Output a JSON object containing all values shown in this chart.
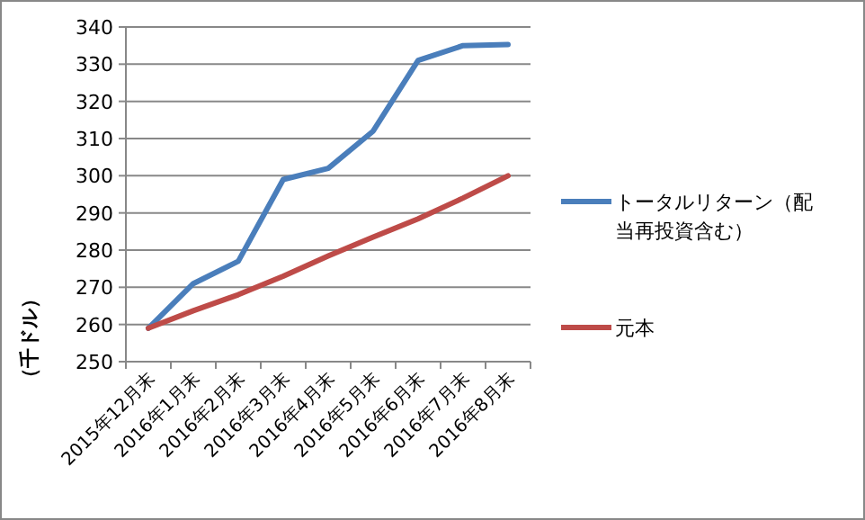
{
  "chart_data": {
    "type": "line",
    "ylabel": "（千ドル）",
    "categories": [
      "2015年12月末",
      "2016年1月末",
      "2016年2月末",
      "2016年3月末",
      "2016年4月末",
      "2016年5月末",
      "2016年6月末",
      "2016年7月末",
      "2016年8月末"
    ],
    "series": [
      {
        "name": "トータルリターン（配当再投資含む）",
        "color": "#4a7ebb",
        "values": [
          259,
          271,
          277,
          299,
          302,
          312,
          331,
          335,
          335.3
        ]
      },
      {
        "name": "元本",
        "color": "#be4b48",
        "values": [
          259,
          263.7,
          268,
          273,
          278.4,
          283.5,
          288.4,
          294,
          300
        ]
      }
    ],
    "ylim": [
      250,
      340
    ],
    "yticks": [
      250,
      260,
      270,
      280,
      290,
      300,
      310,
      320,
      330,
      340
    ],
    "grid": "y",
    "legend": "right",
    "marker": "none",
    "line_style": "solid"
  }
}
